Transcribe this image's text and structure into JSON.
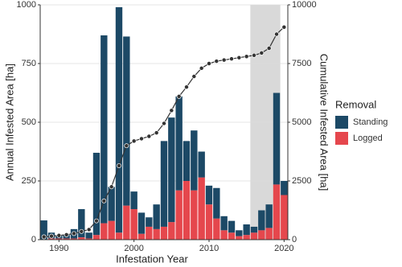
{
  "chart_data": {
    "type": "bar",
    "stacked": true,
    "xlabel": "Infestation Year",
    "ylabel": "Annual Infested Area [ha]",
    "y2label": "Cumulative Infested Area [ha]",
    "legend_title": "Removal",
    "x": [
      1988,
      1989,
      1990,
      1991,
      1992,
      1993,
      1994,
      1995,
      1996,
      1997,
      1998,
      1999,
      2000,
      2001,
      2002,
      2003,
      2004,
      2005,
      2006,
      2007,
      2008,
      2009,
      2010,
      2011,
      2012,
      2013,
      2014,
      2015,
      2016,
      2017,
      2018,
      2019,
      2020
    ],
    "xlim": [
      1987.5,
      2020.5
    ],
    "xticks": [
      1990,
      2000,
      2010,
      2020
    ],
    "ylim": [
      0,
      1000
    ],
    "yticks": [
      0,
      250,
      500,
      750,
      1000
    ],
    "y2lim": [
      0,
      10000
    ],
    "y2ticks": [
      0,
      2500,
      5000,
      7500,
      10000
    ],
    "grid": true,
    "shaded_span": [
      2015.5,
      2019.5
    ],
    "series": [
      {
        "name": "Logged",
        "color": "#e5474d",
        "values": [
          0,
          5,
          5,
          5,
          5,
          10,
          5,
          20,
          70,
          80,
          30,
          145,
          130,
          25,
          55,
          45,
          55,
          75,
          210,
          250,
          210,
          265,
          150,
          90,
          40,
          30,
          15,
          20,
          30,
          40,
          50,
          235,
          190
        ]
      },
      {
        "name": "Standing",
        "color": "#1c4966",
        "values": [
          82,
          25,
          13,
          15,
          40,
          120,
          25,
          350,
          800,
          145,
          960,
          720,
          75,
          90,
          40,
          105,
          365,
          445,
          400,
          170,
          255,
          110,
          80,
          130,
          60,
          50,
          25,
          45,
          25,
          85,
          100,
          390,
          60
        ]
      }
    ],
    "cumulative": {
      "axis": "y2",
      "color": "#333333",
      "values": [
        120,
        150,
        180,
        210,
        260,
        350,
        430,
        800,
        1650,
        2250,
        3150,
        4000,
        4200,
        4300,
        4400,
        4550,
        4950,
        5500,
        6100,
        6500,
        6950,
        7300,
        7500,
        7600,
        7650,
        7700,
        7750,
        7800,
        7850,
        7950,
        8150,
        8750,
        9050
      ]
    }
  }
}
